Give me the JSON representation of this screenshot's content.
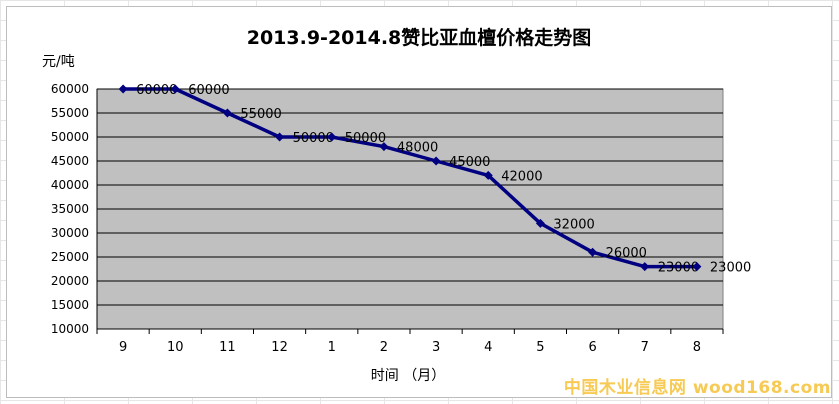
{
  "chart_data": {
    "type": "line",
    "title": "2013.9-2014.8赞比亚血檀价格走势图",
    "ylabel": "元/吨",
    "xlabel": "时间 （月）",
    "categories": [
      "9",
      "10",
      "11",
      "12",
      "1",
      "2",
      "3",
      "4",
      "5",
      "6",
      "7",
      "8"
    ],
    "series": [
      {
        "values": [
          60000,
          60000,
          55000,
          50000,
          50000,
          48000,
          45000,
          42000,
          32000,
          26000,
          23000,
          23000
        ]
      }
    ],
    "data_labels": [
      "60000",
      "60000",
      "55000",
      "50000",
      "50000",
      "48000",
      "45000",
      "42000",
      "32000",
      "26000",
      "23000",
      "23000"
    ],
    "y_ticks": [
      "10000",
      "15000",
      "20000",
      "25000",
      "30000",
      "35000",
      "40000",
      "45000",
      "50000",
      "55000",
      "60000"
    ],
    "ylim": [
      10000,
      60000
    ],
    "grid": true,
    "legend": "none",
    "colors": {
      "line": "#000080",
      "plot_bg": "#c0c0c0",
      "grid": "#000000"
    }
  },
  "watermark": "中国木业信息网 wood168.com"
}
